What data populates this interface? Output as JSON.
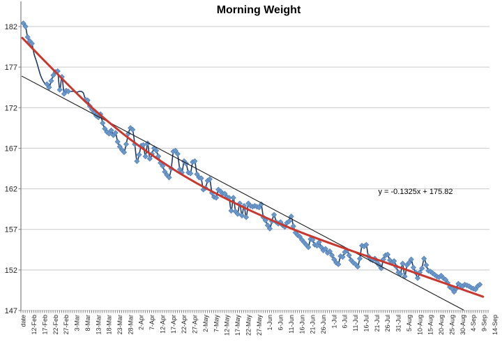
{
  "chart_data": {
    "type": "line",
    "title": "Morning Weight",
    "xlabel": "",
    "ylabel": "",
    "ylim": [
      147,
      182
    ],
    "y_ticks": [
      147,
      152,
      157,
      162,
      167,
      172,
      177,
      182
    ],
    "x_tick_labels": [
      "date",
      "12-Feb",
      "17-Feb",
      "22-Feb",
      "27-Feb",
      "3-Mar",
      "8-Mar",
      "13-Mar",
      "18-Mar",
      "23-Mar",
      "28-Mar",
      "2-Apr",
      "7-Apr",
      "12-Apr",
      "17-Apr",
      "22-Apr",
      "27-Apr",
      "2-May",
      "7-May",
      "12-May",
      "17-May",
      "22-May",
      "27-May",
      "1-Jun",
      "6-Jun",
      "11-Jun",
      "16-Jun",
      "21-Jun",
      "26-Jun",
      "1-Jul",
      "6-Jul",
      "11-Jul",
      "16-Jul",
      "21-Jul",
      "26-Jul",
      "31-Jul",
      "5-Aug",
      "10-Aug",
      "15-Aug",
      "20-Aug",
      "25-Aug",
      "30-Aug",
      "4-Sep",
      "9-Sep",
      "14-Sep"
    ],
    "x_tick_label_interval": 5,
    "n_positions": 216,
    "grid": "horizontal",
    "legend": false,
    "colors": {
      "series_line": "#1F3864",
      "marker_fill": "#6D97C6",
      "marker_edge": "#4F81BD",
      "poly_trend": "#C8382E",
      "linear_trend": "#1A1A1A",
      "gridline": "#C9C9C9",
      "axis": "#7F7F7F",
      "label_text": "#262626"
    },
    "series": [
      {
        "name": "morning weight",
        "marker": "diamond",
        "values": [
          182.4,
          182.0,
          180.7,
          180.2,
          179.9,
          178.6,
          177.8,
          176.9,
          176.0,
          175.4,
          175.0,
          174.9,
          174.5,
          175.3,
          176.0,
          176.4,
          176.5,
          174.2,
          175.8,
          173.7,
          174.1,
          174.0,
          174.0,
          174.0,
          174.0,
          173.9,
          174.0,
          174.0,
          173.8,
          173.0,
          172.9,
          172.2,
          171.8,
          171.4,
          171.0,
          170.8,
          171.2,
          170.1,
          169.4,
          169.0,
          168.8,
          169.2,
          168.6,
          168.9,
          167.8,
          167.2,
          166.8,
          166.5,
          167.5,
          168.8,
          169.5,
          169.3,
          167.5,
          165.4,
          166.2,
          167.3,
          167.4,
          166.0,
          167.6,
          165.7,
          166.3,
          167.0,
          166.7,
          166.0,
          165.2,
          164.8,
          164.1,
          163.7,
          163.4,
          164.5,
          166.6,
          166.7,
          166.3,
          164.4,
          164.0,
          165.4,
          165.1,
          164.0,
          163.9,
          165.3,
          165.4,
          163.8,
          163.4,
          163.3,
          161.9,
          162.1,
          163.0,
          163.2,
          161.5,
          161.0,
          160.9,
          161.9,
          161.7,
          161.4,
          161.4,
          161.0,
          160.9,
          159.3,
          160.9,
          159.2,
          158.9,
          160.2,
          158.7,
          159.9,
          158.5,
          160.2,
          159.9,
          159.8,
          159.9,
          159.8,
          159.7,
          160.1,
          158.5,
          158.1,
          157.5,
          157.1,
          158.0,
          158.8,
          157.9,
          157.7,
          157.9,
          157.5,
          157.3,
          157.8,
          158.0,
          158.6,
          157.4,
          156.6,
          156.3,
          156.1,
          155.7,
          155.4,
          155.1,
          154.8,
          155.8,
          155.7,
          155.1,
          155.0,
          155.4,
          154.8,
          154.4,
          154.6,
          154.1,
          154.3,
          153.8,
          153.3,
          152.9,
          152.7,
          153.7,
          153.6,
          154.2,
          154.4,
          153.8,
          153.2,
          152.9,
          152.7,
          152.4,
          153.4,
          155.0,
          154.9,
          155.1,
          153.7,
          153.3,
          153.2,
          153.4,
          152.9,
          152.6,
          152.2,
          153.3,
          153.8,
          153.9,
          153.2,
          152.9,
          153.1,
          152.4,
          151.7,
          151.5,
          152.8,
          151.2,
          152.6,
          152.9,
          153.3,
          152.3,
          151.7,
          151.0,
          151.7,
          152.2,
          153.4,
          152.6,
          151.9,
          151.8,
          151.6,
          151.4,
          151.2,
          151.1,
          151.3,
          151.0,
          150.8,
          150.4,
          149.9,
          149.7,
          149.3,
          149.7,
          150.3,
          150.1,
          150.0,
          150.2,
          150.1,
          150.0,
          149.8,
          149.7,
          149.6,
          150.0,
          150.2
        ],
        "hidden_marker_indices": [
          5,
          6,
          7,
          8,
          9,
          10,
          22,
          23,
          24,
          25,
          26,
          27,
          28
        ]
      }
    ],
    "trendlines": [
      {
        "kind": "linear",
        "equation": "y = -0.1325x + 175.82",
        "slope": -0.1325,
        "intercept": 175.82,
        "draw_from": [
          0.2,
          175.9
        ],
        "draw_to": [
          206.5,
          147.05
        ]
      },
      {
        "kind": "polynomial",
        "anchors": [
          [
            0.5,
            180.6
          ],
          [
            13,
            177.2
          ],
          [
            33,
            172.0
          ],
          [
            57,
            166.9
          ],
          [
            86,
            162.1
          ],
          [
            127,
            157.0
          ],
          [
            180,
            152.0
          ],
          [
            215.5,
            148.7
          ]
        ]
      }
    ]
  }
}
